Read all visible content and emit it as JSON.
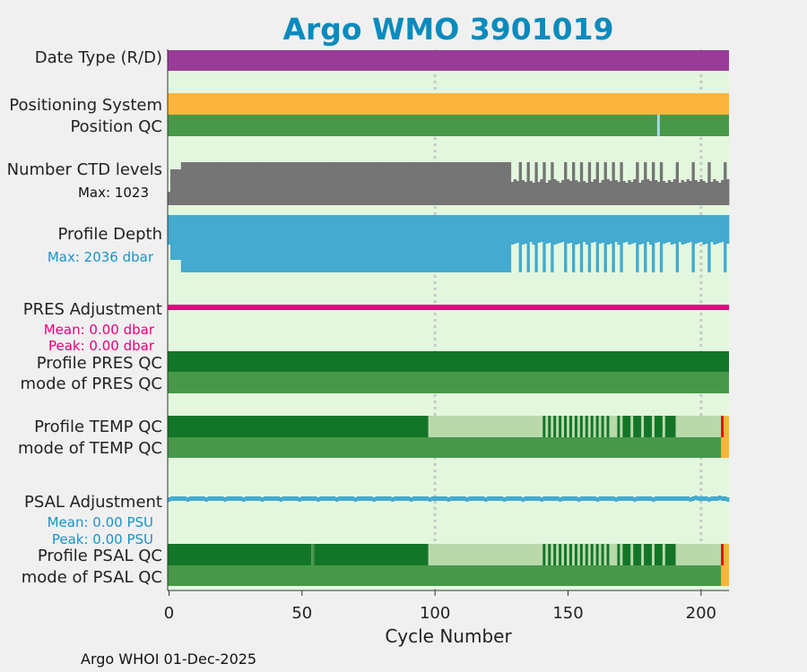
{
  "title": "Argo WMO 3901019",
  "footer": "Argo WHOI 01-Dec-2025",
  "colors": {
    "plot_bg": "#e3f7df",
    "date_type": "#993c98",
    "positioning": "#fdb43e",
    "qc_good": "#48984a",
    "qc_dark": "#137528",
    "qc_light": "#b9d9ab",
    "qc_red": "#e60000",
    "qc_orange": "#fdb43e",
    "pos_fail": "#a8d8e8",
    "ctd_gray": "#757575",
    "depth_blue": "#44aacf",
    "pres_adj": "#e6007a",
    "psal_adj": "#44aacf",
    "title_color": "#0a8bbd",
    "grid": "#c8c8c8"
  },
  "labels": {
    "date_type": "Date Type (R/D)",
    "positioning_system": "Positioning System",
    "position_qc": "Position QC",
    "ctd_levels": "Number CTD levels",
    "ctd_max": "Max: 1023",
    "profile_depth": "Profile Depth",
    "depth_max": "Max: 2036 dbar",
    "pres_adjustment": "PRES Adjustment",
    "pres_mean": "Mean: 0.00 dbar",
    "pres_peak": "Peak: 0.00 dbar",
    "profile_pres_qc": "Profile PRES QC",
    "mode_pres_qc": "mode of PRES QC",
    "profile_temp_qc": "Profile TEMP QC",
    "mode_temp_qc": "mode of TEMP QC",
    "psal_adjustment": "PSAL Adjustment",
    "psal_mean": "Mean: 0.00 PSU",
    "psal_peak": "Peak: 0.00 PSU",
    "profile_psal_qc": "Profile PSAL QC",
    "mode_psal_qc": "mode of PSAL QC"
  },
  "chart_data": {
    "type": "bar",
    "title": "Argo WMO 3901019",
    "xlabel": "Cycle Number",
    "xlim": [
      -0.5,
      210.5
    ],
    "xticks": [
      0,
      50,
      100,
      150,
      200
    ],
    "grid_x": [
      100,
      200
    ],
    "n_cycles": 211,
    "ctd_levels_max": 1023,
    "profile_depth_max_dbar": 2036,
    "pres_adjustment": {
      "mean": 0.0,
      "peak": 0.0,
      "unit": "dbar"
    },
    "psal_adjustment": {
      "mean": 0.0,
      "peak": 0.0,
      "unit": "PSU"
    },
    "position_qc_fail_cycles": [
      184
    ],
    "full_depth_spike_cycles": [
      132,
      135,
      138,
      141,
      144,
      149,
      152,
      155,
      158,
      161,
      164,
      167,
      170,
      176,
      179,
      182,
      185,
      191,
      197,
      203,
      209
    ],
    "qc_dark_spike_cycles": [
      141,
      143,
      145,
      147,
      149,
      151,
      153,
      155,
      157,
      159,
      161,
      163,
      165,
      169,
      171,
      181,
      183,
      185,
      188,
      190
    ],
    "temp_qc_segments": [
      {
        "from": 0,
        "to": 97,
        "class": "dark"
      },
      {
        "from": 98,
        "to": 139,
        "class": "light"
      },
      {
        "from": 140,
        "to": 168,
        "class": "light_spiky"
      },
      {
        "from": 169,
        "to": 190,
        "class": "dark_spiky"
      },
      {
        "from": 191,
        "to": 207,
        "class": "light"
      },
      {
        "from": 208,
        "to": 208,
        "class": "red"
      },
      {
        "from": 209,
        "to": 210,
        "class": "orange"
      }
    ],
    "psal_qc_segments": [
      {
        "from": 0,
        "to": 53,
        "class": "dark"
      },
      {
        "from": 54,
        "to": 54,
        "class": "good"
      },
      {
        "from": 55,
        "to": 97,
        "class": "dark"
      },
      {
        "from": 98,
        "to": 139,
        "class": "light"
      },
      {
        "from": 140,
        "to": 168,
        "class": "light_spiky"
      },
      {
        "from": 169,
        "to": 190,
        "class": "dark_spiky"
      },
      {
        "from": 191,
        "to": 207,
        "class": "light"
      },
      {
        "from": 208,
        "to": 208,
        "class": "red"
      },
      {
        "from": 209,
        "to": 210,
        "class": "orange"
      }
    ],
    "mode_qc_end_orange_from": 208
  }
}
